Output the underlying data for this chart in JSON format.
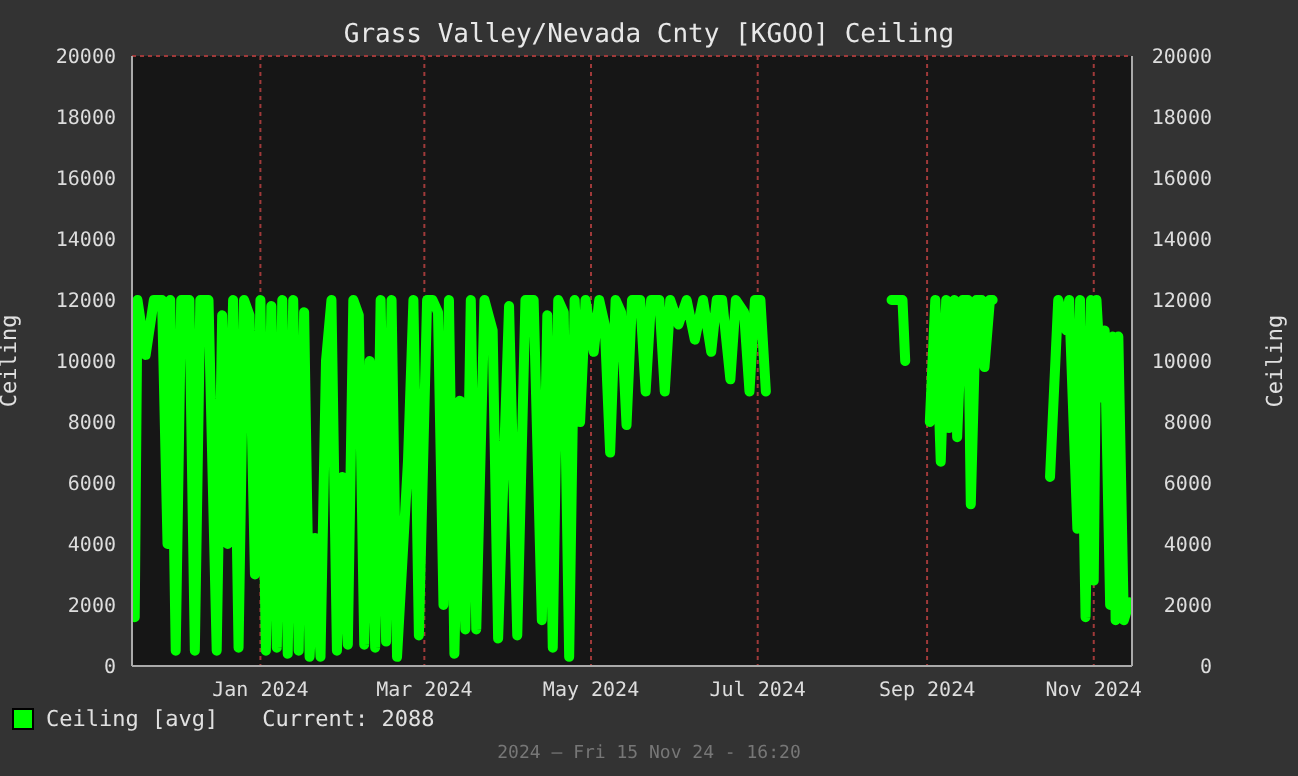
{
  "chart_data": {
    "type": "line",
    "title": "Grass Valley/Nevada Cnty [KGOO] Ceiling",
    "ylabel": "Ceiling",
    "y2label": "Ceiling",
    "x": [
      "2023-11-16",
      "2023-11-17",
      "2023-11-20",
      "2023-11-23",
      "2023-11-26",
      "2023-11-28",
      "2023-11-29",
      "2023-12-01",
      "2023-12-03",
      "2023-12-06",
      "2023-12-08",
      "2023-12-10",
      "2023-12-13",
      "2023-12-16",
      "2023-12-18",
      "2023-12-20",
      "2023-12-22",
      "2023-12-24",
      "2023-12-26",
      "2023-12-28",
      "2023-12-30",
      "2024-01-01",
      "2024-01-03",
      "2024-01-05",
      "2024-01-07",
      "2024-01-09",
      "2024-01-11",
      "2024-01-13",
      "2024-01-15",
      "2024-01-17",
      "2024-01-19",
      "2024-01-21",
      "2024-01-23",
      "2024-01-25",
      "2024-01-27",
      "2024-01-29",
      "2024-01-31",
      "2024-02-02",
      "2024-02-04",
      "2024-02-06",
      "2024-02-08",
      "2024-02-10",
      "2024-02-12",
      "2024-02-14",
      "2024-02-16",
      "2024-02-18",
      "2024-02-20",
      "2024-02-22",
      "2024-02-24",
      "2024-02-26",
      "2024-02-28",
      "2024-03-02",
      "2024-03-04",
      "2024-03-06",
      "2024-03-08",
      "2024-03-10",
      "2024-03-12",
      "2024-03-14",
      "2024-03-16",
      "2024-03-18",
      "2024-03-20",
      "2024-03-23",
      "2024-03-26",
      "2024-03-28",
      "2024-04-01",
      "2024-04-04",
      "2024-04-07",
      "2024-04-10",
      "2024-04-13",
      "2024-04-15",
      "2024-04-17",
      "2024-04-19",
      "2024-04-21",
      "2024-04-23",
      "2024-04-25",
      "2024-04-27",
      "2024-04-29",
      "2024-05-02",
      "2024-05-04",
      "2024-05-06",
      "2024-05-08",
      "2024-05-10",
      "2024-05-12",
      "2024-05-14",
      "2024-05-16",
      "2024-05-19",
      "2024-05-21",
      "2024-05-23",
      "2024-05-26",
      "2024-05-28",
      "2024-05-30",
      "2024-06-02",
      "2024-06-05",
      "2024-06-08",
      "2024-06-11",
      "2024-06-14",
      "2024-06-16",
      "2024-06-18",
      "2024-06-21",
      "2024-06-23",
      "2024-06-26",
      "2024-06-28",
      "2024-06-30",
      "2024-07-02",
      "2024-07-04",
      "2024-07-06",
      "2024-07-20",
      "2024-08-19",
      "2024-08-22",
      "2024-08-23",
      "2024-08-24",
      "2024-08-28",
      "2024-09-02",
      "2024-09-04",
      "2024-09-06",
      "2024-09-08",
      "2024-09-09",
      "2024-09-11",
      "2024-09-12",
      "2024-09-14",
      "2024-09-16",
      "2024-09-17",
      "2024-09-19",
      "2024-09-21",
      "2024-09-22",
      "2024-09-24",
      "2024-09-25",
      "2024-10-05",
      "2024-10-16",
      "2024-10-19",
      "2024-10-22",
      "2024-10-23",
      "2024-10-26",
      "2024-10-27",
      "2024-10-29",
      "2024-10-31",
      "2024-11-01",
      "2024-11-02",
      "2024-11-04",
      "2024-11-05",
      "2024-11-07",
      "2024-11-08",
      "2024-11-09",
      "2024-11-10",
      "2024-11-12",
      "2024-11-14"
    ],
    "series": [
      {
        "name": "Ceiling [avg]",
        "color": "#00ff00",
        "values": [
          1600,
          12000,
          10200,
          12000,
          12000,
          4000,
          12000,
          500,
          12000,
          12000,
          500,
          12000,
          12000,
          500,
          11500,
          4000,
          12000,
          600,
          12000,
          11500,
          3000,
          12000,
          500,
          11800,
          600,
          12000,
          400,
          12000,
          500,
          11600,
          300,
          4200,
          300,
          10000,
          12000,
          500,
          6200,
          700,
          12000,
          11500,
          700,
          10000,
          600,
          12000,
          800,
          12000,
          300,
          3500,
          6700,
          12000,
          1000,
          12000,
          12000,
          11600,
          2000,
          12000,
          400,
          8700,
          1200,
          12000,
          1200,
          12000,
          11000,
          900,
          11800,
          1000,
          12000,
          12000,
          1500,
          11500,
          600,
          12000,
          11600,
          300,
          12000,
          8000,
          12000,
          10300,
          12000,
          11200,
          7000,
          12000,
          11600,
          7900,
          12000,
          12000,
          9000,
          12000,
          12000,
          9000,
          12000,
          11200,
          12000,
          10700,
          12000,
          10300,
          12000,
          12000,
          9400,
          12000,
          11600,
          9000,
          12000,
          12000,
          9000,
          null,
          null,
          12000,
          12000,
          12000,
          10000,
          null,
          8000,
          12000,
          6700,
          12000,
          7800,
          12000,
          7500,
          12000,
          12000,
          5300,
          12000,
          12000,
          9800,
          12000,
          12000,
          null,
          6200,
          12000,
          11000,
          12000,
          4500,
          12000,
          1600,
          12000,
          2800,
          12000,
          8800,
          11000,
          2000,
          10800,
          1500,
          10800,
          1500,
          2088
        ]
      }
    ],
    "xlim": [
      "2023-11-15",
      "2024-11-15"
    ],
    "xticks": [
      {
        "value": "2024-01-01",
        "label": "Jan 2024"
      },
      {
        "value": "2024-03-01",
        "label": "Mar 2024"
      },
      {
        "value": "2024-05-01",
        "label": "May 2024"
      },
      {
        "value": "2024-07-01",
        "label": "Jul 2024"
      },
      {
        "value": "2024-09-01",
        "label": "Sep 2024"
      },
      {
        "value": "2024-11-01",
        "label": "Nov 2024"
      }
    ],
    "ylim": [
      0,
      20000
    ],
    "yticks": [
      0,
      2000,
      4000,
      6000,
      8000,
      10000,
      12000,
      14000,
      16000,
      18000,
      20000
    ],
    "y2lim": [
      0,
      20000
    ],
    "y2ticks": [
      0,
      2000,
      4000,
      6000,
      8000,
      10000,
      12000,
      14000,
      16000,
      18000,
      20000
    ],
    "grid": true,
    "legend": "bottom left",
    "line_style": "solid",
    "annotations": [
      "Current: 2088",
      "2024 — Fri 15 Nov 24 - 16:20"
    ]
  }
}
